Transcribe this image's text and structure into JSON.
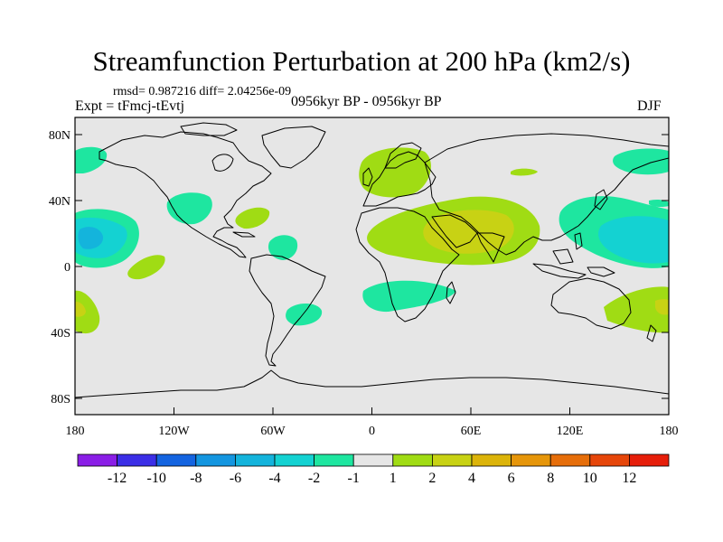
{
  "title": "Streamfunction Perturbation at 200 hPa (km2/s)",
  "stats": "rmsd= 0.987216 diff= 2.04256e-09",
  "expt": "Expt = tFmcj-tEvtj",
  "period": "0956kyr BP - 0956kyr BP",
  "season": "DJF",
  "lat_ticks": [
    "80N",
    "40N",
    "0",
    "40S",
    "80S"
  ],
  "lon_ticks": [
    "180",
    "120W",
    "60W",
    "0",
    "60E",
    "120E",
    "180"
  ],
  "colorbar": {
    "labels": [
      "-12",
      "-10",
      "-8",
      "-6",
      "-4",
      "-2",
      "-1",
      "1",
      "2",
      "4",
      "6",
      "8",
      "10",
      "12"
    ],
    "colors": [
      "#8a1ee6",
      "#3b2ee6",
      "#1464e0",
      "#1496e0",
      "#14b4dc",
      "#14d2d2",
      "#1ee6a0",
      "#e6e6e6",
      "#a0dc14",
      "#c8d214",
      "#dcb40a",
      "#e6960a",
      "#e66e0a",
      "#e6460a",
      "#e61e0a"
    ]
  },
  "map_background": "#e6e6e6"
}
